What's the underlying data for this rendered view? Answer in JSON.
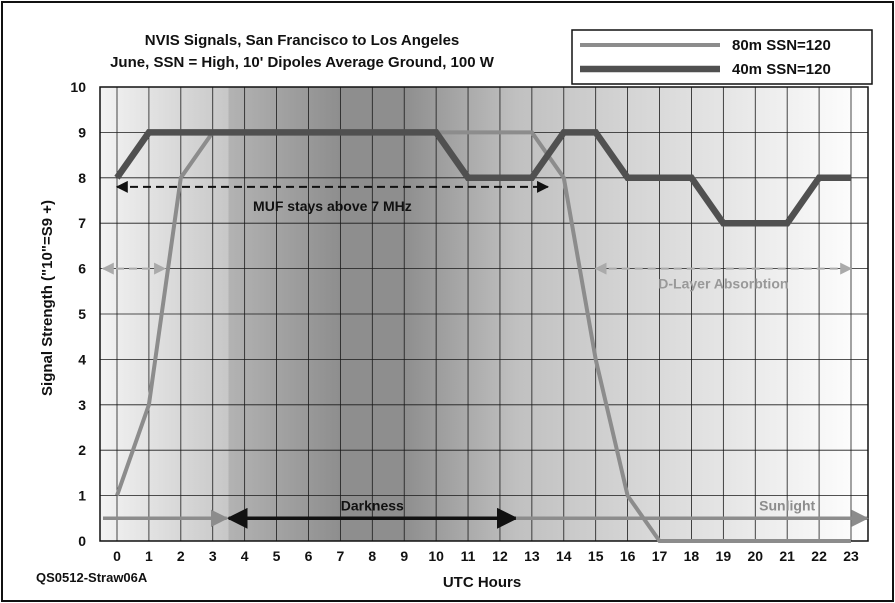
{
  "chart_data": {
    "type": "line",
    "title": "NVIS Signals, San Francisco to Los Angeles",
    "subtitle": "June, SSN = High, 10' Dipoles Average Ground, 100 W",
    "xlabel": "UTC Hours",
    "ylabel": "Signal Strength (\"10\"=S9 +)",
    "source_label": "QS0512-Straw06A",
    "xlim": [
      0,
      23
    ],
    "ylim": [
      0,
      10
    ],
    "x_ticks": [
      0,
      1,
      2,
      3,
      4,
      5,
      6,
      7,
      8,
      9,
      10,
      11,
      12,
      13,
      14,
      15,
      16,
      17,
      18,
      19,
      20,
      21,
      22,
      23
    ],
    "y_ticks": [
      0,
      1,
      2,
      3,
      4,
      5,
      6,
      7,
      8,
      9,
      10
    ],
    "grid": true,
    "legend_position": "top-right",
    "series": [
      {
        "name": "80m SSN=120",
        "color": "#8c8c8c",
        "x": [
          0,
          1,
          2,
          3,
          13,
          14,
          15,
          16,
          17,
          23
        ],
        "y": [
          1,
          3,
          8,
          9,
          9,
          8,
          4,
          1,
          0,
          0
        ]
      },
      {
        "name": "40m SSN=120",
        "color": "#505050",
        "x": [
          0,
          1,
          3,
          10,
          11,
          13,
          14,
          15,
          16,
          18,
          19,
          21,
          22,
          23
        ],
        "y": [
          8,
          9,
          9,
          9,
          8,
          8,
          9,
          9,
          8,
          8,
          7,
          7,
          8,
          8
        ]
      }
    ],
    "background_shading": {
      "darkness_start": 3.5,
      "darkness_end": 12.5,
      "peak_dark_start": 7,
      "peak_dark_end": 9
    },
    "annotations": [
      {
        "text": "MUF stays above 7 MHz",
        "x_from": 0,
        "x_to": 13.5,
        "y": 7.8,
        "color": "#111111",
        "style": "dashed"
      },
      {
        "text": "",
        "x_from": -0.5,
        "x_to": 1.5,
        "y": 6,
        "color": "#aaaaaa",
        "style": "dashed"
      },
      {
        "text": "D-Layer Absorbtion",
        "x_from": 15,
        "x_to": 23,
        "y": 6,
        "color": "#aaaaaa",
        "style": "dashed"
      },
      {
        "text": "Darkness",
        "x_from": 3.5,
        "x_to": 12.5,
        "y": 0.5,
        "color": "#111111",
        "style": "solid"
      },
      {
        "text": "Sunlight",
        "x_from": 12.5,
        "x_to": 23.5,
        "y": 0.5,
        "color": "#8c8c8c",
        "style": "solid"
      }
    ]
  }
}
